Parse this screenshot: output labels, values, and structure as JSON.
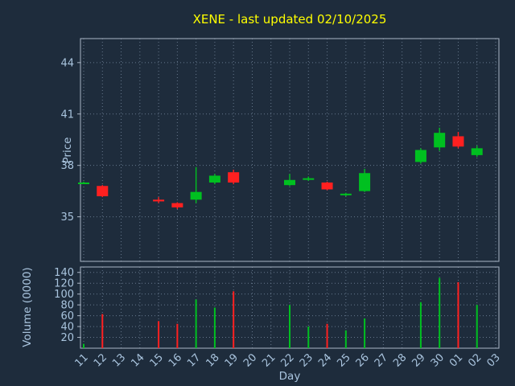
{
  "colors": {
    "background": "#1e2c3c",
    "up": "#00c020",
    "down": "#ff2020",
    "grid": "#66778c",
    "frame": "#aab6c6",
    "title": "#ffff00",
    "label": "#a9c4de"
  },
  "chart_data": {
    "type": "candlestick+volume",
    "title": "XENE - last updated 02/10/2025",
    "xlabel": "Day",
    "price_ylabel": "Price",
    "volume_ylabel": "Volume (0000)",
    "price_ticks": [
      35,
      38,
      41,
      44
    ],
    "price_range": [
      32.4,
      45.4
    ],
    "volume_ticks": [
      20,
      40,
      60,
      80,
      100,
      120,
      140
    ],
    "volume_range": [
      0,
      150
    ],
    "grid": true,
    "days": [
      "11",
      "12",
      "13",
      "14",
      "15",
      "16",
      "17",
      "18",
      "19",
      "20",
      "21",
      "22",
      "23",
      "24",
      "25",
      "26",
      "27",
      "28",
      "29",
      "30",
      "01",
      "02",
      "03"
    ],
    "candles": [
      {
        "day": "11",
        "open": 37.0,
        "high": 37.05,
        "low": 36.95,
        "close": 37.0,
        "color": "up",
        "volume": 8
      },
      {
        "day": "12",
        "open": 36.8,
        "high": 36.85,
        "low": 36.15,
        "close": 36.2,
        "color": "down",
        "volume": 63
      },
      {
        "day": "15",
        "open": 36.0,
        "high": 36.15,
        "low": 35.8,
        "close": 35.9,
        "color": "down",
        "volume": 50
      },
      {
        "day": "16",
        "open": 35.8,
        "high": 35.85,
        "low": 35.45,
        "close": 35.55,
        "color": "down",
        "volume": 45
      },
      {
        "day": "17",
        "open": 36.0,
        "high": 37.9,
        "low": 35.8,
        "close": 36.45,
        "color": "up",
        "volume": 90
      },
      {
        "day": "18",
        "open": 37.0,
        "high": 37.5,
        "low": 36.9,
        "close": 37.4,
        "color": "up",
        "volume": 75
      },
      {
        "day": "19",
        "open": 37.6,
        "high": 37.75,
        "low": 36.9,
        "close": 37.0,
        "color": "down",
        "volume": 105
      },
      {
        "day": "22",
        "open": 36.85,
        "high": 37.5,
        "low": 36.8,
        "close": 37.15,
        "color": "up",
        "volume": 80
      },
      {
        "day": "23",
        "open": 37.2,
        "high": 37.35,
        "low": 37.1,
        "close": 37.25,
        "color": "up",
        "volume": 40
      },
      {
        "day": "24",
        "open": 37.0,
        "high": 37.05,
        "low": 36.55,
        "close": 36.6,
        "color": "down",
        "volume": 45
      },
      {
        "day": "25",
        "open": 36.3,
        "high": 36.4,
        "low": 36.2,
        "close": 36.35,
        "color": "up",
        "volume": 33
      },
      {
        "day": "26",
        "open": 36.5,
        "high": 37.8,
        "low": 36.45,
        "close": 37.55,
        "color": "up",
        "volume": 55
      },
      {
        "day": "29",
        "open": 38.2,
        "high": 39.0,
        "low": 38.1,
        "close": 38.9,
        "color": "up",
        "volume": 85
      },
      {
        "day": "30",
        "open": 39.05,
        "high": 40.2,
        "low": 38.85,
        "close": 39.9,
        "color": "up",
        "volume": 130
      },
      {
        "day": "01",
        "open": 39.7,
        "high": 39.95,
        "low": 39.0,
        "close": 39.1,
        "color": "down",
        "volume": 122
      },
      {
        "day": "02",
        "open": 38.6,
        "high": 39.15,
        "low": 38.5,
        "close": 39.0,
        "color": "up",
        "volume": 80
      }
    ]
  }
}
